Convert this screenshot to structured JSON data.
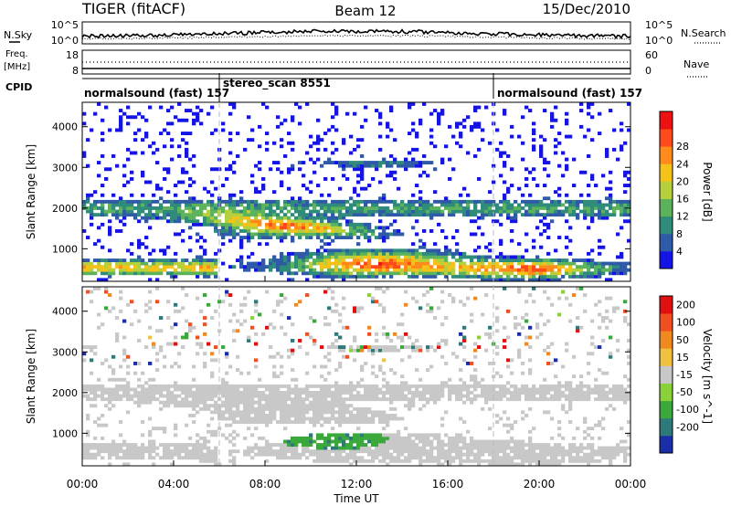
{
  "header": {
    "title": "TIGER (fitACF)",
    "beam": "Beam 12",
    "date": "15/Dec/2010"
  },
  "top_panels": {
    "nsky_label": "N.Sky",
    "nsearch_label": "N.Search",
    "nsky_ticks": [
      "10^5",
      "10^0"
    ],
    "nsearch_ticks": [
      "10^5",
      "10^0"
    ],
    "freq_label": "Freq.",
    "freq_unit": "[MHz]",
    "freq_ticks": [
      "18",
      "8"
    ],
    "nave_label": "Nave",
    "nave_ticks": [
      "60",
      "0"
    ],
    "cpid_label": "CPID",
    "cpid_segments": [
      "normalsound (fast) 157",
      "stereo_scan 8551",
      "normalsound (fast) 157"
    ]
  },
  "chart_data": [
    {
      "type": "heatmap",
      "name": "power",
      "ylabel": "Slant Range [km]",
      "ylim": [
        200,
        4600
      ],
      "yticks": [
        "1000",
        "2000",
        "3000",
        "4000"
      ],
      "colorbar_label": "Power [dB]",
      "colorbar_ticks": [
        "4",
        "8",
        "12",
        "16",
        "20",
        "24",
        "28"
      ],
      "colorbar_colors": [
        "#1414e6",
        "#2e5aa8",
        "#2f8c7a",
        "#5cb35c",
        "#b6cf3c",
        "#f5c21a",
        "#ff8c1a",
        "#ff4a1a",
        "#ee1111"
      ]
    },
    {
      "type": "heatmap",
      "name": "velocity",
      "ylabel": "Slant Range [km]",
      "ylim": [
        200,
        4600
      ],
      "yticks": [
        "1000",
        "2000",
        "3000",
        "4000"
      ],
      "colorbar_label": "Velocity [m s^-1]",
      "colorbar_ticks": [
        "200",
        "100",
        "50",
        "15",
        "-15",
        "-50",
        "-100",
        "-200"
      ],
      "colorbar_colors": [
        "#1a2eaa",
        "#2e7a7a",
        "#3aa83a",
        "#8ad13a",
        "#c8c8c8",
        "#f0c040",
        "#f08a20",
        "#f05020",
        "#e01010"
      ]
    }
  ],
  "x_axis": {
    "ticks": [
      "00:00",
      "04:00",
      "08:00",
      "12:00",
      "16:00",
      "20:00",
      "00:00"
    ],
    "label": "Time UT"
  }
}
